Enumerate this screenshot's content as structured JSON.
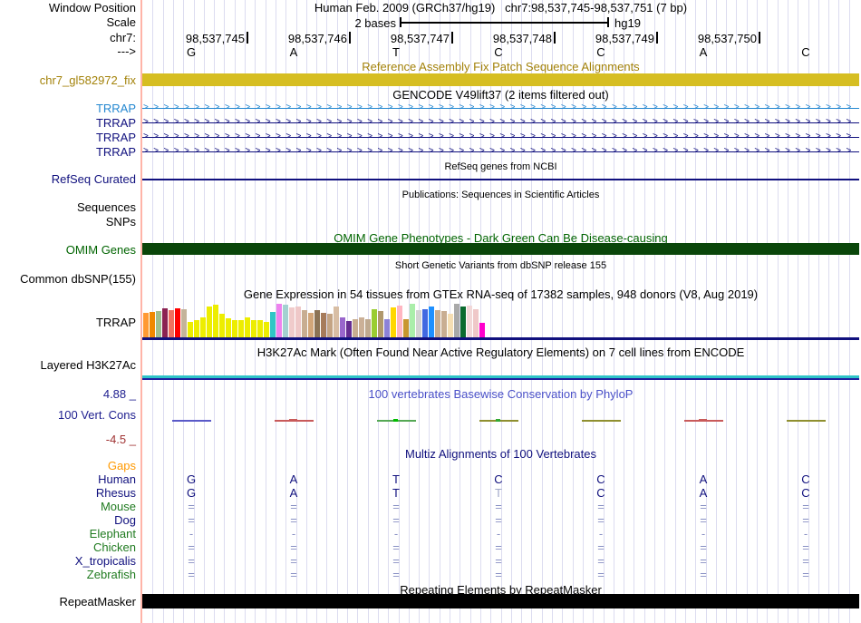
{
  "header": {
    "assembly_title": "Human Feb. 2009 (GRCh37/hg19)",
    "position_title": "chr7:98,537,745-98,537,751 (7 bp)",
    "window_position_label": "Window Position",
    "scale_label": "Scale",
    "scale_value": "2 bases",
    "scale_genome": "hg19",
    "chrom_label": "chr7:",
    "strand_label": "--->",
    "ruler_ticks": [
      "98,537,745",
      "98,537,746",
      "98,537,747",
      "98,537,748",
      "98,537,749",
      "98,537,750"
    ],
    "bases": [
      "G",
      "A",
      "T",
      "C",
      "C",
      "A",
      "C"
    ]
  },
  "tracks": {
    "fix_patch": {
      "title": "Reference Assembly Fix Patch Sequence Alignments",
      "label": "chr7_gl582972_fix",
      "bar_color": "#D6BE22",
      "text_color": "#A38209"
    },
    "gencode": {
      "title": "GENCODE V49lift37 (2 items filtered out)",
      "transcripts": [
        {
          "label": "TRRAP",
          "color": "#2387D0"
        },
        {
          "label": "TRRAP",
          "color": "#10107E"
        },
        {
          "label": "TRRAP",
          "color": "#10107E"
        },
        {
          "label": "TRRAP",
          "color": "#10107E"
        }
      ]
    },
    "refseq": {
      "title": "RefSeq genes from NCBI",
      "label": "RefSeq Curated",
      "color": "#10107E"
    },
    "publications": {
      "title": "Publications: Sequences in Scientific Articles",
      "labels": [
        "Sequences",
        "SNPs"
      ]
    },
    "omim": {
      "title": "OMIM Gene Phenotypes - Dark Green Can Be Disease-causing",
      "label": "OMIM Genes",
      "bar_color": "#0A460A",
      "text_color": "#006400"
    },
    "dbsnp": {
      "title": "Short Genetic Variants from dbSNP release 155",
      "label": "Common dbSNP(155)"
    },
    "gtex": {
      "title": "Gene Expression in 54 tissues from GTEx RNA-seq of 17382 samples, 948 donors (V8, Aug 2019)",
      "label": "TRRAP",
      "baseline_color": "#10107E"
    },
    "h3k27ac": {
      "title": "H3K27Ac Mark (Often Found Near Active Regulatory Elements) on 7 cell lines from ENCODE",
      "label": "Layered H3K27Ac",
      "cyan_line_color": "#2EC4C8",
      "navy_line_color": "#2020A0"
    },
    "phylop": {
      "title": "100 vertebrates Basewise Conservation by PhyloP",
      "title_color": "#4A50C8",
      "label": "100 Vert. Cons",
      "max_label": "4.88 _",
      "min_label": "-4.5 _",
      "max_color": "#202090",
      "min_color": "#A03333",
      "marks": [
        {
          "color": "#5A5AC8"
        },
        {
          "color": "#C85A5A",
          "peak": true
        },
        {
          "color": "#55A855",
          "dot": "#00BB00"
        },
        {
          "color": "#8F8F30",
          "dot": "#33AA33"
        },
        {
          "color": "#8F8F30"
        },
        {
          "color": "#C85A5A",
          "peak": true
        },
        {
          "color": "#8F8F30"
        }
      ]
    },
    "multiz": {
      "title": "Multiz Alignments of 100 Vertebrates",
      "title_color": "#10107E",
      "symbol_color": "#8890C4",
      "muted_letter_color": "#A0A8C8",
      "rows": [
        {
          "label": "Gaps",
          "label_color": "#FF9900",
          "cells": [
            "",
            "",
            "",
            "",
            "",
            "",
            ""
          ]
        },
        {
          "label": "Human",
          "label_color": "#10107E",
          "cells": [
            "G",
            "A",
            "T",
            "C",
            "C",
            "A",
            "C"
          ],
          "cell_type": "letter"
        },
        {
          "label": "Rhesus",
          "label_color": "#10107E",
          "cells": [
            "G",
            "A",
            "T",
            "T",
            "C",
            "A",
            "C"
          ],
          "cell_type": "letter",
          "muted_cells": [
            3
          ]
        },
        {
          "label": "Mouse",
          "label_color": "#1F7A1F",
          "cells": [
            "=",
            "=",
            "=",
            "=",
            "=",
            "=",
            "="
          ]
        },
        {
          "label": "Dog",
          "label_color": "#10107E",
          "cells": [
            "=",
            "=",
            "=",
            "=",
            "=",
            "=",
            "="
          ]
        },
        {
          "label": "Elephant",
          "label_color": "#1F7A1F",
          "cells": [
            "-",
            "-",
            "-",
            "-",
            "-",
            "-",
            "-"
          ]
        },
        {
          "label": "Chicken",
          "label_color": "#1F7A1F",
          "cells": [
            "=",
            "=",
            "=",
            "=",
            "=",
            "=",
            "="
          ]
        },
        {
          "label": "X_tropicalis",
          "label_color": "#10107E",
          "cells": [
            "=",
            "=",
            "=",
            "=",
            "=",
            "=",
            "="
          ]
        },
        {
          "label": "Zebrafish",
          "label_color": "#1F7A1F",
          "cells": [
            "=",
            "=",
            "=",
            "=",
            "=",
            "=",
            "="
          ]
        }
      ]
    },
    "repeatmasker": {
      "title": "Repeating Elements by RepeatMasker",
      "label": "RepeatMasker",
      "bar_color": "#000000"
    }
  },
  "chart_data": {
    "type": "bar",
    "title": "Gene Expression in 54 tissues from GTEx RNA-seq of 17382 samples, 948 donors (V8, Aug 2019)",
    "gene": "TRRAP",
    "ylabel": "",
    "note": "values are relative bar heights (0-1) read from pixels; no numeric axis shown",
    "values": [
      0.71,
      0.74,
      0.76,
      0.84,
      0.79,
      0.84,
      0.82,
      0.45,
      0.5,
      0.58,
      0.89,
      0.95,
      0.68,
      0.55,
      0.5,
      0.5,
      0.58,
      0.5,
      0.5,
      0.45,
      0.74,
      0.97,
      0.95,
      0.87,
      0.89,
      0.79,
      0.71,
      0.79,
      0.71,
      0.68,
      0.89,
      0.58,
      0.47,
      0.53,
      0.58,
      0.53,
      0.82,
      0.76,
      0.53,
      0.87,
      0.92,
      0.53,
      0.97,
      0.79,
      0.82,
      0.89,
      0.79,
      0.76,
      0.68,
      0.97,
      0.89,
      0.92,
      0.82,
      0.42
    ],
    "colors": [
      "#FF9933",
      "#F08800",
      "#9FBF8F",
      "#8B2252",
      "#F07060",
      "#FF0000",
      "#C4B49A",
      "#EDED00",
      "#EDED00",
      "#EDED00",
      "#EDED00",
      "#EDED00",
      "#EDED00",
      "#EDED00",
      "#EDED00",
      "#EDED00",
      "#EDED00",
      "#EDED00",
      "#EDED00",
      "#EDED00",
      "#2FC6C6",
      "#EE82EE",
      "#A3D1D1",
      "#F0CBCB",
      "#EFC8C8",
      "#C8AD91",
      "#D2A679",
      "#8B7355",
      "#A67B5B",
      "#C4A484",
      "#D8BEA4",
      "#9966CC",
      "#662D91",
      "#C8AD91",
      "#CBB097",
      "#BFA98F",
      "#9ACD32",
      "#B0986C",
      "#8C82D8",
      "#FFD700",
      "#FFB6C1",
      "#C8962E",
      "#AAEEAA",
      "#D3D3D3",
      "#4169E1",
      "#1E90FF",
      "#C8AD91",
      "#C9AE92",
      "#F5DEB3",
      "#A9A9A9",
      "#0B6B2F",
      "#F2D8D8",
      "#EFC8C8",
      "#FF00CC"
    ]
  }
}
